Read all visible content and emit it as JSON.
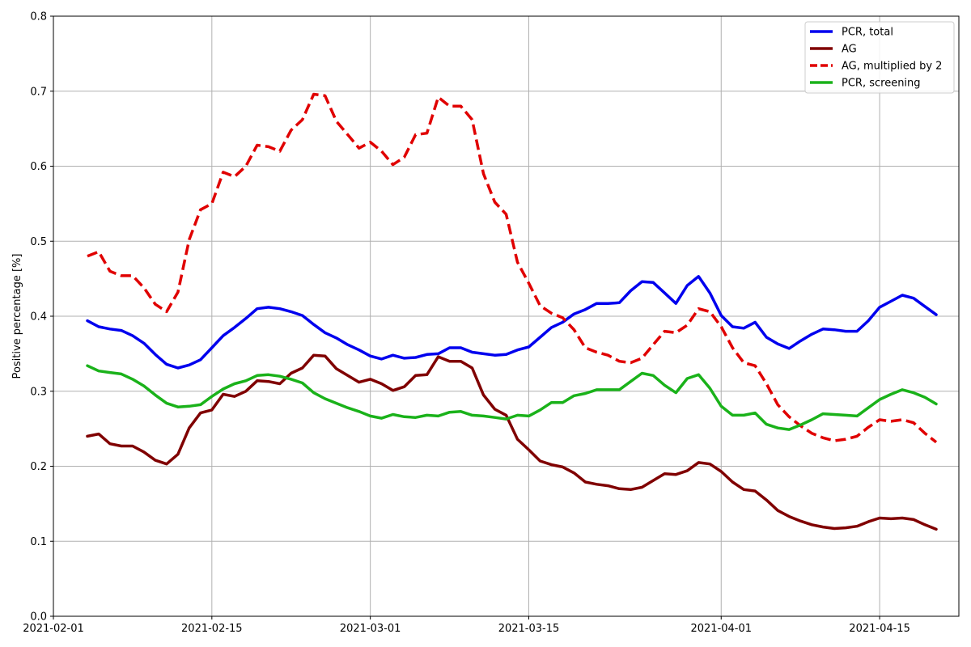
{
  "chart_data": {
    "type": "line",
    "title": "",
    "xlabel": "",
    "ylabel": "Positive percentage [%]",
    "xlim": [
      "2021-02-01",
      "2021-04-22"
    ],
    "ylim": [
      0.0,
      0.8
    ],
    "yticks": [
      0.0,
      0.1,
      0.2,
      0.3,
      0.4,
      0.5,
      0.6,
      0.7,
      0.8
    ],
    "ytick_labels": [
      "0.0",
      "0.1",
      "0.2",
      "0.3",
      "0.4",
      "0.5",
      "0.6",
      "0.7",
      "0.8"
    ],
    "xticks": [
      "2021-02-01",
      "2021-02-15",
      "2021-03-01",
      "2021-03-15",
      "2021-04-01",
      "2021-04-15"
    ],
    "xtick_labels": [
      "2021-02-01",
      "2021-02-15",
      "2021-03-01",
      "2021-03-15",
      "2021-04-01",
      "2021-04-15"
    ],
    "grid": true,
    "legend_position": "top-right",
    "x": [
      "2021-02-04",
      "2021-02-05",
      "2021-02-06",
      "2021-02-07",
      "2021-02-08",
      "2021-02-09",
      "2021-02-10",
      "2021-02-11",
      "2021-02-12",
      "2021-02-13",
      "2021-02-14",
      "2021-02-15",
      "2021-02-16",
      "2021-02-17",
      "2021-02-18",
      "2021-02-19",
      "2021-02-20",
      "2021-02-21",
      "2021-02-22",
      "2021-02-23",
      "2021-02-24",
      "2021-02-25",
      "2021-02-26",
      "2021-02-27",
      "2021-02-28",
      "2021-03-01",
      "2021-03-02",
      "2021-03-03",
      "2021-03-04",
      "2021-03-05",
      "2021-03-06",
      "2021-03-07",
      "2021-03-08",
      "2021-03-09",
      "2021-03-10",
      "2021-03-11",
      "2021-03-12",
      "2021-03-13",
      "2021-03-14",
      "2021-03-15",
      "2021-03-16",
      "2021-03-17",
      "2021-03-18",
      "2021-03-19",
      "2021-03-20",
      "2021-03-21",
      "2021-03-22",
      "2021-03-23",
      "2021-03-24",
      "2021-03-25",
      "2021-03-26",
      "2021-03-27",
      "2021-03-28",
      "2021-03-29",
      "2021-03-30",
      "2021-03-31",
      "2021-04-01",
      "2021-04-02",
      "2021-04-03",
      "2021-04-04",
      "2021-04-05",
      "2021-04-06",
      "2021-04-07",
      "2021-04-08",
      "2021-04-09",
      "2021-04-10",
      "2021-04-11",
      "2021-04-12",
      "2021-04-13",
      "2021-04-14",
      "2021-04-15",
      "2021-04-16",
      "2021-04-17",
      "2021-04-18",
      "2021-04-19",
      "2021-04-20"
    ],
    "series": [
      {
        "name": "PCR, total",
        "color": "#0000ee",
        "style": "solid",
        "values": [
          0.394,
          0.386,
          0.383,
          0.381,
          0.374,
          0.364,
          0.349,
          0.336,
          0.331,
          0.335,
          0.342,
          0.358,
          0.374,
          0.385,
          0.397,
          0.41,
          0.412,
          0.41,
          0.406,
          0.401,
          0.389,
          0.378,
          0.371,
          0.362,
          0.355,
          0.347,
          0.343,
          0.348,
          0.344,
          0.345,
          0.349,
          0.35,
          0.358,
          0.358,
          0.352,
          0.35,
          0.348,
          0.349,
          0.355,
          0.359,
          0.372,
          0.385,
          0.392,
          0.403,
          0.409,
          0.417,
          0.417,
          0.418,
          0.434,
          0.446,
          0.445,
          0.431,
          0.417,
          0.441,
          0.453,
          0.431,
          0.401,
          0.386,
          0.384,
          0.392,
          0.372,
          0.363,
          0.357,
          0.367,
          0.376,
          0.383,
          0.382,
          0.38,
          0.38,
          0.394,
          0.412,
          0.42,
          0.428,
          0.424,
          0.413,
          0.402
        ]
      },
      {
        "name": "AG",
        "color": "#800000",
        "style": "solid",
        "values": [
          0.24,
          0.243,
          0.23,
          0.227,
          0.227,
          0.219,
          0.208,
          0.203,
          0.216,
          0.251,
          0.271,
          0.275,
          0.296,
          0.293,
          0.3,
          0.314,
          0.313,
          0.31,
          0.324,
          0.331,
          0.348,
          0.347,
          0.33,
          0.321,
          0.312,
          0.316,
          0.31,
          0.301,
          0.306,
          0.321,
          0.322,
          0.346,
          0.34,
          0.34,
          0.331,
          0.295,
          0.276,
          0.268,
          0.236,
          0.222,
          0.207,
          0.202,
          0.199,
          0.191,
          0.179,
          0.176,
          0.174,
          0.17,
          0.169,
          0.172,
          0.181,
          0.19,
          0.189,
          0.194,
          0.205,
          0.203,
          0.193,
          0.179,
          0.169,
          0.167,
          0.155,
          0.141,
          0.133,
          0.127,
          0.122,
          0.119,
          0.117,
          0.118,
          0.12,
          0.126,
          0.131,
          0.13,
          0.131,
          0.129,
          0.122,
          0.116
        ]
      },
      {
        "name": "AG, multiplied by 2",
        "color": "#e00000",
        "style": "dashed",
        "values": [
          0.48,
          0.486,
          0.46,
          0.454,
          0.454,
          0.438,
          0.416,
          0.406,
          0.432,
          0.502,
          0.542,
          0.55,
          0.592,
          0.586,
          0.6,
          0.628,
          0.626,
          0.62,
          0.648,
          0.662,
          0.696,
          0.694,
          0.66,
          0.642,
          0.624,
          0.632,
          0.62,
          0.602,
          0.612,
          0.642,
          0.644,
          0.692,
          0.68,
          0.68,
          0.662,
          0.59,
          0.552,
          0.536,
          0.472,
          0.444,
          0.414,
          0.404,
          0.398,
          0.382,
          0.358,
          0.352,
          0.348,
          0.34,
          0.338,
          0.344,
          0.362,
          0.38,
          0.378,
          0.388,
          0.41,
          0.406,
          0.386,
          0.358,
          0.338,
          0.334,
          0.31,
          0.282,
          0.266,
          0.254,
          0.244,
          0.238,
          0.234,
          0.236,
          0.24,
          0.252,
          0.262,
          0.26,
          0.262,
          0.258,
          0.244,
          0.232
        ]
      },
      {
        "name": "PCR, screening",
        "color": "#1ab21a",
        "style": "solid",
        "values": [
          0.334,
          0.327,
          0.325,
          0.323,
          0.316,
          0.307,
          0.295,
          0.284,
          0.279,
          0.28,
          0.282,
          0.293,
          0.303,
          0.31,
          0.314,
          0.321,
          0.322,
          0.32,
          0.316,
          0.311,
          0.298,
          0.29,
          0.284,
          0.278,
          0.273,
          0.267,
          0.264,
          0.269,
          0.266,
          0.265,
          0.268,
          0.267,
          0.272,
          0.273,
          0.268,
          0.267,
          0.265,
          0.263,
          0.268,
          0.267,
          0.275,
          0.285,
          0.285,
          0.294,
          0.297,
          0.302,
          0.302,
          0.302,
          0.313,
          0.324,
          0.321,
          0.308,
          0.298,
          0.317,
          0.322,
          0.304,
          0.28,
          0.268,
          0.268,
          0.271,
          0.256,
          0.251,
          0.249,
          0.255,
          0.262,
          0.27,
          0.269,
          0.268,
          0.267,
          0.278,
          0.289,
          0.296,
          0.302,
          0.298,
          0.292,
          0.283
        ]
      }
    ]
  }
}
